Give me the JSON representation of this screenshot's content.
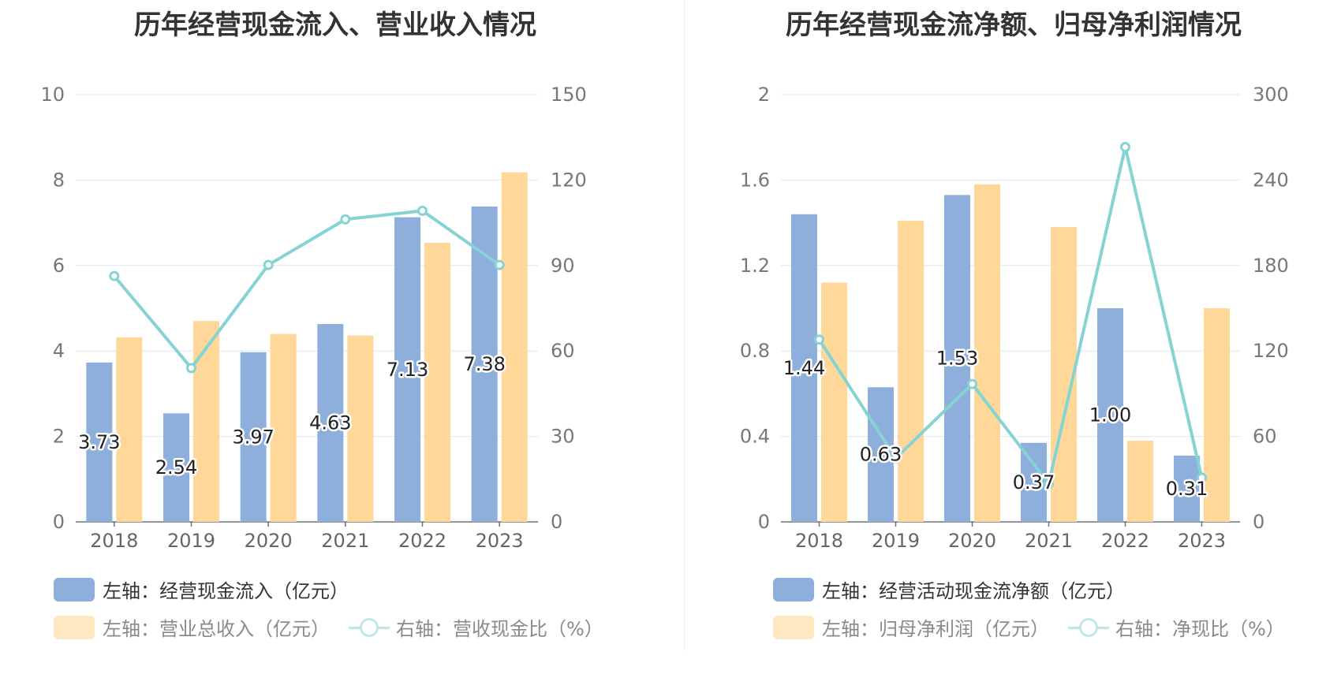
{
  "charts": [
    {
      "title": "历年经营现金流入、营业收入情况",
      "legend": [
        {
          "label": "左轴：经营现金流入（亿元）",
          "color": "#8eaedb"
        },
        {
          "label": "左轴：营业总收入（亿元）",
          "color": "#ffe7c2"
        },
        {
          "label": "右轴：营收现金比（%）",
          "color": "#bfe6e6"
        }
      ]
    },
    {
      "title": "历年经营现金流净额、归母净利润情况",
      "legend": [
        {
          "label": "左轴：经营活动现金流净额（亿元）",
          "color": "#8eaedb"
        },
        {
          "label": "左轴：归母净利润（亿元）",
          "color": "#ffe7c2"
        },
        {
          "label": "右轴：净现比（%）",
          "color": "#bfe6e6"
        }
      ]
    }
  ],
  "chart_data": [
    {
      "type": "bar",
      "title": "历年经营现金流入、营业收入情况",
      "categories": [
        "2018",
        "2019",
        "2020",
        "2021",
        "2022",
        "2023"
      ],
      "left_axis": {
        "ylim": [
          0,
          10
        ],
        "ticks": [
          "0",
          "2",
          "4",
          "6",
          "8",
          "10"
        ]
      },
      "right_axis": {
        "ylim": [
          0,
          150
        ],
        "ticks": [
          "0",
          "30",
          "60",
          "90",
          "120",
          "150"
        ]
      },
      "grid": true,
      "legend_position": "bottom",
      "series": [
        {
          "name": "左轴：经营现金流入（亿元）",
          "type": "bar",
          "axis": "left",
          "color": "#8eaedb",
          "values": [
            3.73,
            2.54,
            3.97,
            4.63,
            7.13,
            7.38
          ],
          "labels": [
            "3.73",
            "2.54",
            "3.97",
            "4.63",
            "7.13",
            "7.38"
          ]
        },
        {
          "name": "左轴：营业总收入（亿元）",
          "type": "bar",
          "axis": "left",
          "color": "#ffd899",
          "values": [
            4.32,
            4.7,
            4.4,
            4.36,
            6.53,
            8.18
          ]
        },
        {
          "name": "右轴：营收现金比（%）",
          "type": "line",
          "axis": "right",
          "color": "#86d3d3",
          "values": [
            86.3,
            54.0,
            90.2,
            106.2,
            109.2,
            90.2
          ]
        }
      ]
    },
    {
      "type": "bar",
      "title": "历年经营现金流净额、归母净利润情况",
      "categories": [
        "2018",
        "2019",
        "2020",
        "2021",
        "2022",
        "2023"
      ],
      "left_axis": {
        "ylim": [
          0,
          2
        ],
        "ticks": [
          "0",
          "0.4",
          "0.8",
          "1.2",
          "1.6",
          "2"
        ]
      },
      "right_axis": {
        "ylim": [
          0,
          300
        ],
        "ticks": [
          "0",
          "60",
          "120",
          "180",
          "240",
          "300"
        ]
      },
      "grid": true,
      "legend_position": "bottom",
      "series": [
        {
          "name": "左轴：经营活动现金流净额（亿元）",
          "type": "bar",
          "axis": "left",
          "color": "#8eaedb",
          "values": [
            1.44,
            0.63,
            1.53,
            0.37,
            1.0,
            0.31
          ],
          "labels": [
            "1.44",
            "0.63",
            "1.53",
            "0.37",
            "1.00",
            "0.31"
          ]
        },
        {
          "name": "左轴：归母净利润（亿元）",
          "type": "bar",
          "axis": "left",
          "color": "#ffd899",
          "values": [
            1.12,
            1.41,
            1.58,
            1.38,
            0.38,
            1.0
          ]
        },
        {
          "name": "右轴：净现比（%）",
          "type": "line",
          "axis": "right",
          "color": "#86d3d3",
          "values": [
            128.0,
            44.7,
            96.8,
            26.8,
            263.2,
            31.0
          ]
        }
      ]
    }
  ]
}
